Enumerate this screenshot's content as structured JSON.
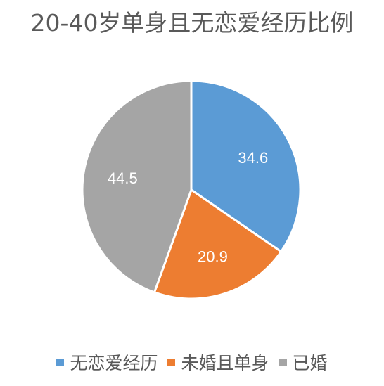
{
  "chart_data": {
    "type": "pie",
    "title": "20-40岁单身且无恋爱经历比例",
    "categories": [
      "无恋爱经历",
      "未婚且单身",
      "已婚"
    ],
    "values": [
      34.6,
      20.9,
      44.5
    ],
    "data_labels": [
      "34.6",
      "20.9",
      "44.5"
    ],
    "colors": [
      "#5B9BD5",
      "#ED7D31",
      "#A5A5A5"
    ],
    "legend_position": "bottom",
    "start_angle": "12-o'clock",
    "direction": "clockwise"
  }
}
